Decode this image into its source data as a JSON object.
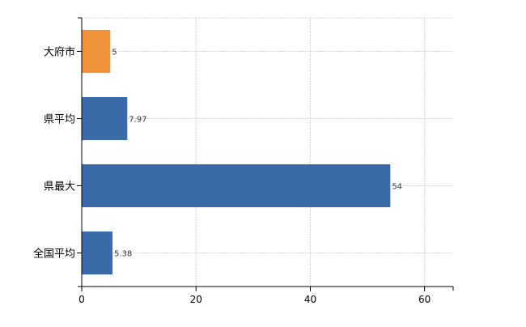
{
  "chart_data": {
    "type": "bar",
    "orientation": "horizontal",
    "categories": [
      "大府市",
      "県平均",
      "県最大",
      "全国平均"
    ],
    "values": [
      5,
      7.97,
      54,
      5.38
    ],
    "data_labels": [
      "5",
      "7.97",
      "54",
      "5.38"
    ],
    "bar_colors": [
      "#f0923a",
      "#3a6aa8",
      "#3a6aa8",
      "#3a6aa8"
    ],
    "xlim": [
      0,
      65
    ],
    "x_ticks": [
      0,
      20,
      40,
      60
    ],
    "x_tick_labels": [
      "0",
      "20",
      "40",
      "60"
    ],
    "grid": true,
    "legend": "none",
    "title": "",
    "xlabel": "",
    "ylabel": ""
  }
}
